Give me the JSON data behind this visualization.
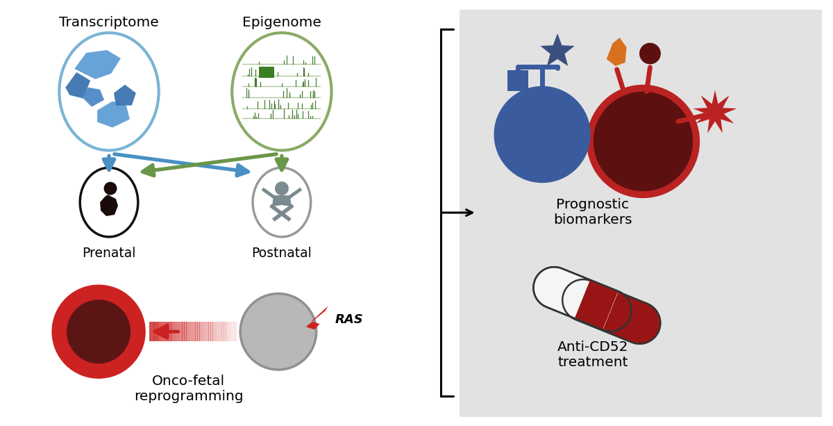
{
  "fig_width": 12.0,
  "fig_height": 6.13,
  "dpi": 100,
  "bg_color": "#ffffff",
  "right_panel_color": "#e2e2e2",
  "transcriptome_label": "Transcriptome",
  "epigenome_label": "Epigenome",
  "prenatal_label": "Prenatal",
  "postnatal_label": "Postnatal",
  "onco_label": "Onco-fetal\nreprogramming",
  "prognostic_label": "Prognostic\nbiomarkers",
  "anticd52_label": "Anti-CD52\ntreatment",
  "ras_label": "RAS",
  "blue_ellipse_color": "#7ab4d4",
  "green_ellipse_color": "#8aab68",
  "arrow_blue": "#4a90c4",
  "arrow_green": "#6a9648",
  "red_cell_outer": "#cc2222",
  "red_cell_inner": "#5c1515",
  "gray_cell_color": "#aaaaaa",
  "gray_cell_edge": "#909090",
  "biomarker_blue_body": "#3a5c9e",
  "biomarker_blue_light": "#4a6eae",
  "biomarker_darkred_body": "#5c1010",
  "biomarker_red_border": "#bb2222",
  "star_blue": "#3a5080",
  "star_orange": "#d87020",
  "starburst_red": "#bb2222",
  "circle_brown": "#5c1010",
  "pill_red": "#991515",
  "pill_white": "#f5f5f5",
  "pill_edge": "#333333",
  "text_color": "#222222"
}
